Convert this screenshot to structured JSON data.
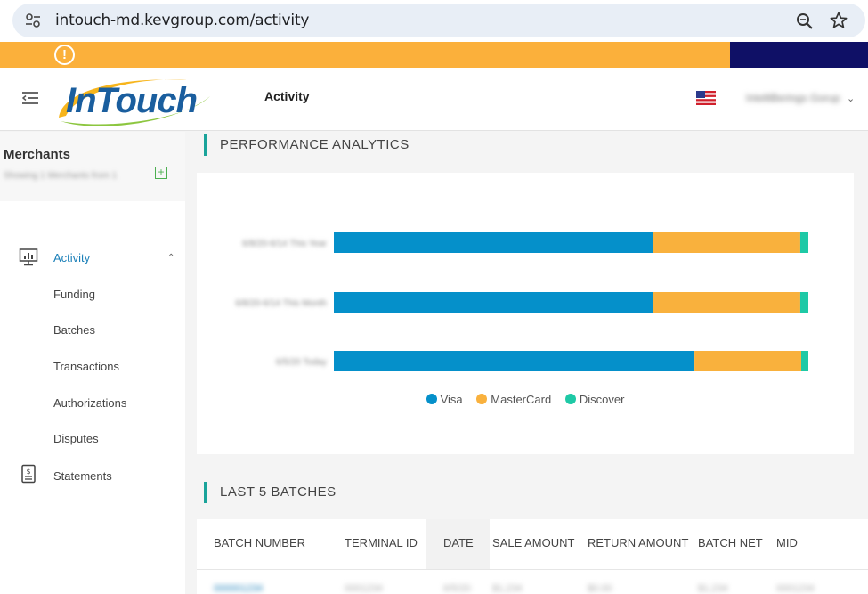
{
  "browser": {
    "url": "intouch-md.kevgroup.com/activity"
  },
  "header": {
    "logo_text": "InTouch",
    "page_title": "Activity",
    "user_name": "IntelliBerings Gorup"
  },
  "sidebar": {
    "merchants_title": "Merchants",
    "merchants_sub": "Showing 1 Merchants from 1",
    "nav": [
      {
        "label": "Activity",
        "icon": "monitor-chart-icon",
        "active": true
      },
      {
        "label": "Funding"
      },
      {
        "label": "Batches"
      },
      {
        "label": "Transactions"
      },
      {
        "label": "Authorizations"
      },
      {
        "label": "Disputes"
      },
      {
        "label": "Statements",
        "icon": "statement-icon"
      }
    ]
  },
  "analytics": {
    "section_title": "PERFORMANCE ANALYTICS"
  },
  "chart_data": {
    "type": "bar",
    "orientation": "horizontal",
    "stacked": true,
    "normalized": true,
    "categories": [
      "6/8/20-6/14 This Year",
      "6/8/20-6/14 This Month",
      "6/5/20 Today"
    ],
    "series": [
      {
        "name": "Visa",
        "color": "#0590ca",
        "values": [
          67.3,
          67.3,
          76.0
        ]
      },
      {
        "name": "MasterCard",
        "color": "#f9b13d",
        "values": [
          31.0,
          31.0,
          22.5
        ]
      },
      {
        "name": "Discover",
        "color": "#1ec9a6",
        "values": [
          1.7,
          1.7,
          1.5
        ]
      }
    ],
    "legend": "bottom-center",
    "grid": false
  },
  "batches": {
    "section_title": "LAST 5 BATCHES",
    "columns": [
      "BATCH NUMBER",
      "TERMINAL ID",
      "DATE",
      "SALE AMOUNT",
      "RETURN AMOUNT",
      "BATCH NET",
      "MID"
    ],
    "first_row": [
      "000001234",
      "0001234",
      "6/5/20",
      "$1,234",
      "$0.00",
      "$1,234",
      "0001234"
    ]
  }
}
